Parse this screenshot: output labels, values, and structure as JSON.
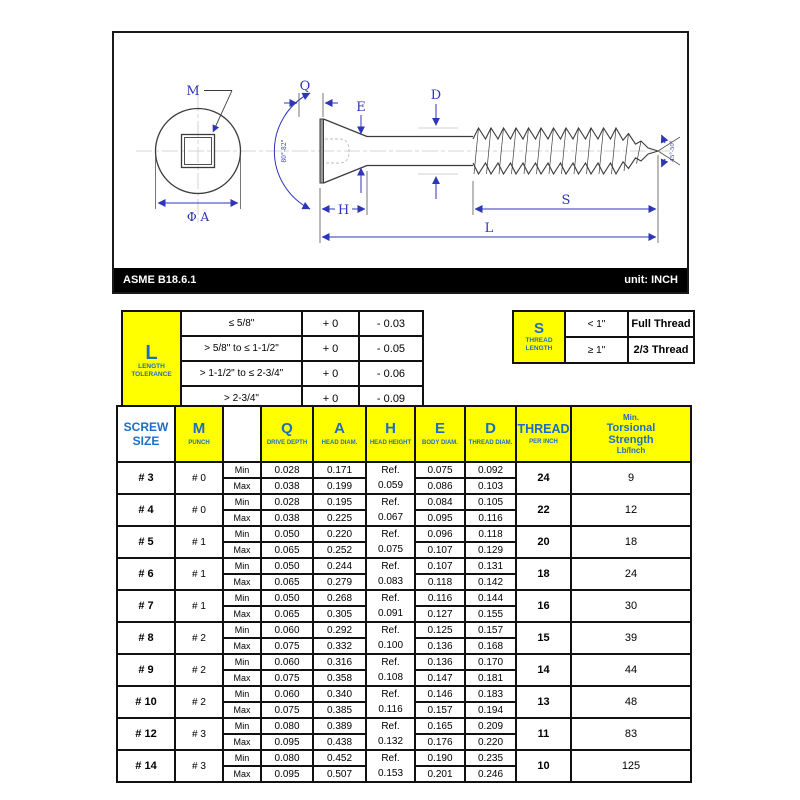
{
  "colors": {
    "header_blue": "#1d6ec2",
    "dim_blue": "#2d35b8",
    "yellow": "#ffff00"
  },
  "title_bar": {
    "standard": "ASME B18.6.1",
    "unit": "unit: INCH"
  },
  "drawing": {
    "labels": {
      "m": "M",
      "phi_a": "Φ A",
      "q": "Q",
      "e": "E",
      "d": "D",
      "h": "H",
      "s": "S",
      "l": "L",
      "head_angle": "80°-82°",
      "point_angle": "45°-50°"
    }
  },
  "length_tolerance_table": {
    "symbol": "L",
    "caption_line1": "LENGTH",
    "caption_line2": "TOLERANCE",
    "rows": [
      {
        "range": "≤ 5/8\"",
        "plus": "+ 0",
        "minus": "- 0.03"
      },
      {
        "range": "> 5/8\" to ≤ 1-1/2\"",
        "plus": "+ 0",
        "minus": "- 0.05"
      },
      {
        "range": "> 1-1/2\" to ≤ 2-3/4\"",
        "plus": "+ 0",
        "minus": "- 0.06"
      },
      {
        "range": "> 2-3/4\"",
        "plus": "+ 0",
        "minus": "- 0.09"
      }
    ]
  },
  "thread_length_table": {
    "symbol": "S",
    "caption_line1": "THREAD",
    "caption_line2": "LENGTH",
    "rows": [
      {
        "range": "< 1\"",
        "value": "Full Thread"
      },
      {
        "range": "≥ 1\"",
        "value": "2/3 Thread"
      }
    ]
  },
  "spec_table": {
    "min_label": "Min",
    "max_label": "Max",
    "headers": {
      "screw_size_line1": "SCREW",
      "screw_size_line2": "SIZE",
      "punch_symbol": "M",
      "punch_caption": "PUNCH",
      "cols": [
        {
          "symbol": "Q",
          "caption": "DRIVE DEPTH"
        },
        {
          "symbol": "A",
          "caption": "HEAD DIAM."
        },
        {
          "symbol": "H",
          "caption": "HEAD HEIGHT"
        },
        {
          "symbol": "E",
          "caption": "BODY DIAM."
        },
        {
          "symbol": "D",
          "caption": "THREAD DIAM."
        }
      ],
      "tpi_symbol": "THREAD",
      "tpi_caption": "PER INCH",
      "strength_lines": [
        "Min.",
        "Torsional",
        "Strength",
        "Lb/Inch"
      ]
    },
    "rows": [
      {
        "size": "# 3",
        "punch": "# 0",
        "min": {
          "q": "0.028",
          "a": "0.171",
          "e": "0.075",
          "d": "0.092"
        },
        "max": {
          "q": "0.038",
          "a": "0.199",
          "e": "0.086",
          "d": "0.103"
        },
        "h_ref": "Ref.",
        "h": "0.059",
        "tpi": "24",
        "strength": "9"
      },
      {
        "size": "# 4",
        "punch": "# 0",
        "min": {
          "q": "0.028",
          "a": "0.195",
          "e": "0.084",
          "d": "0.105"
        },
        "max": {
          "q": "0.038",
          "a": "0.225",
          "e": "0.095",
          "d": "0.116"
        },
        "h_ref": "Ref.",
        "h": "0.067",
        "tpi": "22",
        "strength": "12"
      },
      {
        "size": "# 5",
        "punch": "# 1",
        "min": {
          "q": "0.050",
          "a": "0.220",
          "e": "0.096",
          "d": "0.118"
        },
        "max": {
          "q": "0.065",
          "a": "0.252",
          "e": "0.107",
          "d": "0.129"
        },
        "h_ref": "Ref.",
        "h": "0.075",
        "tpi": "20",
        "strength": "18"
      },
      {
        "size": "# 6",
        "punch": "# 1",
        "min": {
          "q": "0.050",
          "a": "0.244",
          "e": "0.107",
          "d": "0.131"
        },
        "max": {
          "q": "0.065",
          "a": "0.279",
          "e": "0.118",
          "d": "0.142"
        },
        "h_ref": "Ref.",
        "h": "0.083",
        "tpi": "18",
        "strength": "24"
      },
      {
        "size": "# 7",
        "punch": "# 1",
        "min": {
          "q": "0.050",
          "a": "0.268",
          "e": "0.116",
          "d": "0.144"
        },
        "max": {
          "q": "0.065",
          "a": "0.305",
          "e": "0.127",
          "d": "0.155"
        },
        "h_ref": "Ref.",
        "h": "0.091",
        "tpi": "16",
        "strength": "30"
      },
      {
        "size": "# 8",
        "punch": "# 2",
        "min": {
          "q": "0.060",
          "a": "0.292",
          "e": "0.125",
          "d": "0.157"
        },
        "max": {
          "q": "0.075",
          "a": "0.332",
          "e": "0.136",
          "d": "0.168"
        },
        "h_ref": "Ref.",
        "h": "0.100",
        "tpi": "15",
        "strength": "39"
      },
      {
        "size": "# 9",
        "punch": "# 2",
        "min": {
          "q": "0.060",
          "a": "0.316",
          "e": "0.136",
          "d": "0.170"
        },
        "max": {
          "q": "0.075",
          "a": "0.358",
          "e": "0.147",
          "d": "0.181"
        },
        "h_ref": "Ref.",
        "h": "0.108",
        "tpi": "14",
        "strength": "44"
      },
      {
        "size": "# 10",
        "punch": "# 2",
        "min": {
          "q": "0.060",
          "a": "0.340",
          "e": "0.146",
          "d": "0.183"
        },
        "max": {
          "q": "0.075",
          "a": "0.385",
          "e": "0.157",
          "d": "0.194"
        },
        "h_ref": "Ref.",
        "h": "0.116",
        "tpi": "13",
        "strength": "48"
      },
      {
        "size": "# 12",
        "punch": "# 3",
        "min": {
          "q": "0.080",
          "a": "0.389",
          "e": "0.165",
          "d": "0.209"
        },
        "max": {
          "q": "0.095",
          "a": "0.438",
          "e": "0.176",
          "d": "0.220"
        },
        "h_ref": "Ref.",
        "h": "0.132",
        "tpi": "11",
        "strength": "83"
      },
      {
        "size": "# 14",
        "punch": "# 3",
        "min": {
          "q": "0.080",
          "a": "0.452",
          "e": "0.190",
          "d": "0.235"
        },
        "max": {
          "q": "0.095",
          "a": "0.507",
          "e": "0.201",
          "d": "0.246"
        },
        "h_ref": "Ref.",
        "h": "0.153",
        "tpi": "10",
        "strength": "125"
      }
    ]
  }
}
